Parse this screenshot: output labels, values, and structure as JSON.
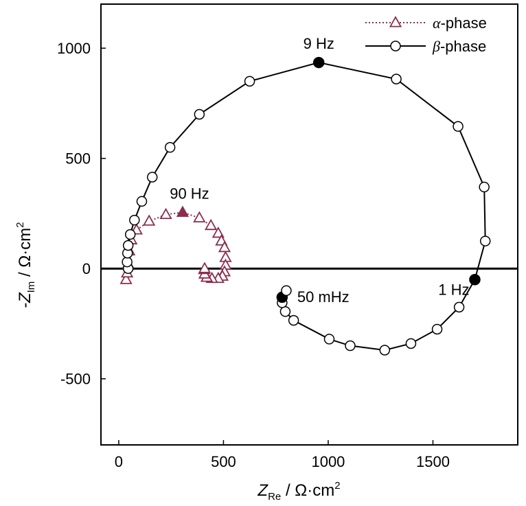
{
  "chart_data": {
    "type": "scatter",
    "title": "",
    "xlabel": {
      "main": "Z",
      "sub": "Re",
      "unit": " / Ω·cm",
      "sup": "2"
    },
    "ylabel": {
      "main": "-Z",
      "sub": "Im",
      "unit": " / Ω·cm",
      "sup": "2"
    },
    "xlim": [
      -85,
      1905
    ],
    "ylim": [
      -800,
      1200
    ],
    "xticks": [
      0,
      500,
      1000,
      1500
    ],
    "xtick_labels": [
      "0",
      "500",
      "1000",
      "1500"
    ],
    "yticks": [
      -500,
      0,
      500,
      1000
    ],
    "ytick_labels": [
      "-500",
      "0",
      "500",
      "1000"
    ],
    "zero_line": true,
    "grid": false,
    "legend_position": "top-right",
    "series": [
      {
        "name": "α-phase",
        "legend_label": {
          "greek": "α",
          "text": "-phase"
        },
        "marker": "triangle-open",
        "line": "dotted",
        "color": "#8b2d4f",
        "points": [
          [
            35,
            -50
          ],
          [
            40,
            -20
          ],
          [
            45,
            20
          ],
          [
            50,
            80
          ],
          [
            60,
            130
          ],
          [
            85,
            175
          ],
          [
            145,
            215
          ],
          [
            225,
            245
          ],
          [
            305,
            255
          ],
          [
            385,
            230
          ],
          [
            440,
            195
          ],
          [
            475,
            160
          ],
          [
            490,
            125
          ],
          [
            505,
            95
          ],
          [
            510,
            50
          ],
          [
            510,
            15
          ],
          [
            505,
            -15
          ],
          [
            495,
            -35
          ],
          [
            475,
            -45
          ],
          [
            445,
            -45
          ],
          [
            420,
            -40
          ],
          [
            410,
            -25
          ],
          [
            408,
            -5
          ],
          [
            410,
            0
          ]
        ],
        "filled_points": [
          [
            305,
            255
          ]
        ]
      },
      {
        "name": "β-phase",
        "legend_label": {
          "greek": "β",
          "text": "-phase"
        },
        "marker": "circle-open",
        "line": "solid",
        "color": "#000000",
        "points": [
          [
            45,
            0
          ],
          [
            40,
            30
          ],
          [
            42,
            70
          ],
          [
            45,
            105
          ],
          [
            55,
            155
          ],
          [
            75,
            220
          ],
          [
            110,
            305
          ],
          [
            160,
            415
          ],
          [
            245,
            550
          ],
          [
            385,
            700
          ],
          [
            625,
            850
          ],
          [
            955,
            935
          ],
          [
            1325,
            860
          ],
          [
            1620,
            645
          ],
          [
            1745,
            370
          ],
          [
            1750,
            125
          ],
          [
            1700,
            -50
          ],
          [
            1625,
            -175
          ],
          [
            1520,
            -275
          ],
          [
            1395,
            -340
          ],
          [
            1270,
            -370
          ],
          [
            1105,
            -350
          ],
          [
            1005,
            -320
          ],
          [
            835,
            -235
          ],
          [
            795,
            -195
          ],
          [
            780,
            -155
          ],
          [
            780,
            -130
          ],
          [
            800,
            -100
          ]
        ],
        "filled_points": [
          [
            955,
            935
          ],
          [
            1700,
            -50
          ],
          [
            780,
            -130
          ]
        ]
      }
    ],
    "annotations": [
      {
        "text": "9 Hz",
        "x": 955,
        "y": 935
      },
      {
        "text": "90 Hz",
        "x": 305,
        "y": 255
      },
      {
        "text": "50 mHz",
        "x": 780,
        "y": -130
      },
      {
        "text": "1 Hz",
        "x": 1700,
        "y": -50
      }
    ]
  }
}
